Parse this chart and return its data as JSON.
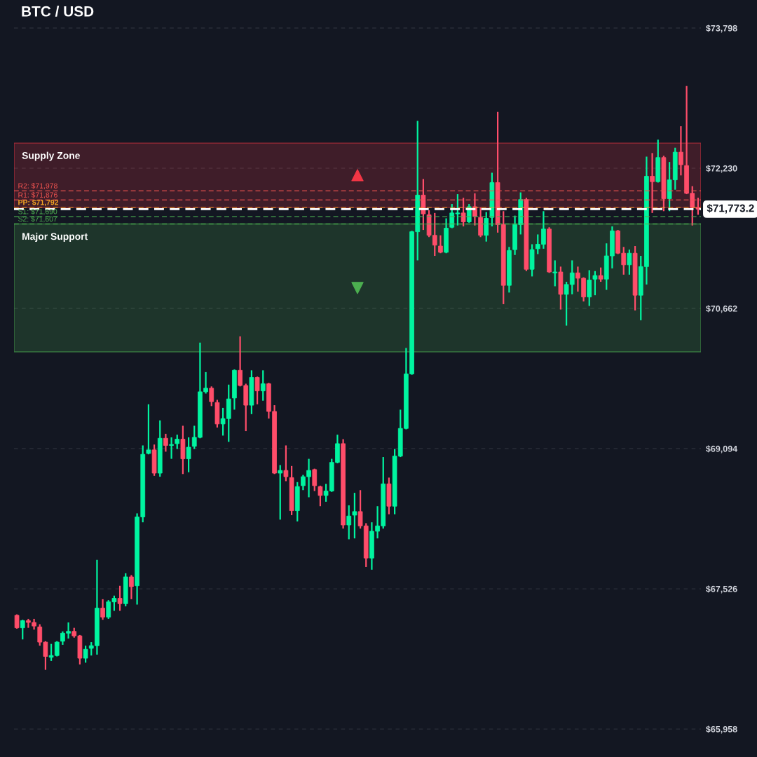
{
  "chart_data": {
    "type": "candlestick",
    "title": "BTC / USD",
    "categories": [
      null,
      null,
      null,
      null,
      null,
      null,
      null,
      null,
      null,
      null,
      null,
      null,
      null,
      null,
      null,
      null,
      null,
      null,
      null,
      null,
      null,
      null,
      null,
      null,
      null,
      null,
      null,
      null,
      null,
      null,
      null,
      null,
      null,
      null,
      null,
      null,
      null,
      null,
      null,
      null,
      null,
      null,
      null,
      null,
      null,
      null,
      null,
      null,
      null,
      null,
      null,
      null,
      null,
      null,
      null,
      null,
      null,
      null,
      null,
      null,
      null,
      null,
      null,
      null,
      null,
      null,
      null,
      null,
      null,
      null,
      null,
      null,
      null,
      null,
      null,
      null,
      null,
      null,
      null,
      null,
      null,
      null,
      null,
      null,
      null,
      null,
      null,
      null,
      null,
      null,
      null,
      null,
      null,
      null,
      null,
      null,
      null,
      null,
      null,
      null,
      null,
      null,
      null,
      null,
      null,
      null,
      null,
      null,
      null,
      null,
      null,
      null,
      null,
      null,
      null,
      null,
      null,
      null,
      null,
      null
    ],
    "ohlc": [
      [
        67230,
        67240,
        67080,
        67090
      ],
      [
        67090,
        67180,
        66960,
        67170
      ],
      [
        67170,
        67190,
        67090,
        67150
      ],
      [
        67150,
        67190,
        67070,
        67110
      ],
      [
        67100,
        67130,
        66890,
        66930
      ],
      [
        66930,
        66940,
        66620,
        66770
      ],
      [
        66760,
        66910,
        66720,
        66780
      ],
      [
        66780,
        66940,
        66770,
        66930
      ],
      [
        66940,
        67050,
        66900,
        67030
      ],
      [
        67030,
        67150,
        66970,
        67050
      ],
      [
        67050,
        67090,
        66980,
        67000
      ],
      [
        67000,
        67010,
        66680,
        66750
      ],
      [
        66750,
        66890,
        66700,
        66850
      ],
      [
        66860,
        66930,
        66780,
        66890
      ],
      [
        66890,
        67850,
        66790,
        67310
      ],
      [
        67310,
        67410,
        67180,
        67210
      ],
      [
        67210,
        67400,
        67190,
        67380
      ],
      [
        67380,
        67450,
        67280,
        67420
      ],
      [
        67420,
        67560,
        67280,
        67360
      ],
      [
        67360,
        67700,
        67330,
        67660
      ],
      [
        67660,
        67680,
        67410,
        67550
      ],
      [
        67560,
        68370,
        67350,
        68330
      ],
      [
        68330,
        69130,
        68270,
        69030
      ],
      [
        69040,
        69590,
        69030,
        69080
      ],
      [
        69080,
        69140,
        68790,
        68820
      ],
      [
        68820,
        69410,
        68780,
        69210
      ],
      [
        69210,
        69260,
        69060,
        69130
      ],
      [
        69130,
        69220,
        68980,
        69140
      ],
      [
        69150,
        69250,
        69090,
        69200
      ],
      [
        69200,
        69350,
        68810,
        68980
      ],
      [
        68980,
        69220,
        68830,
        69110
      ],
      [
        69120,
        69350,
        69090,
        69220
      ],
      [
        69220,
        70280,
        69210,
        69730
      ],
      [
        69730,
        69950,
        69710,
        69770
      ],
      [
        69770,
        69790,
        69570,
        69620
      ],
      [
        69610,
        69640,
        69330,
        69370
      ],
      [
        69370,
        69550,
        69240,
        69430
      ],
      [
        69430,
        69810,
        69170,
        69650
      ],
      [
        69660,
        69980,
        69530,
        69970
      ],
      [
        69970,
        70350,
        69790,
        69800
      ],
      [
        69800,
        69820,
        69290,
        69580
      ],
      [
        69580,
        69970,
        69480,
        69890
      ],
      [
        69890,
        69900,
        69590,
        69740
      ],
      [
        69740,
        69970,
        69630,
        69820
      ],
      [
        69820,
        69830,
        69430,
        69510
      ],
      [
        69510,
        69580,
        68810,
        68820
      ],
      [
        68820,
        68910,
        68300,
        68850
      ],
      [
        68850,
        69130,
        68730,
        68780
      ],
      [
        68770,
        68900,
        68350,
        68400
      ],
      [
        68400,
        68720,
        68280,
        68670
      ],
      [
        68680,
        68800,
        68630,
        68780
      ],
      [
        68780,
        68980,
        68550,
        68850
      ],
      [
        68860,
        68870,
        68620,
        68680
      ],
      [
        68670,
        68680,
        68450,
        68570
      ],
      [
        68570,
        68700,
        68500,
        68620
      ],
      [
        68620,
        68980,
        68610,
        68940
      ],
      [
        68940,
        69250,
        68930,
        69150
      ],
      [
        69150,
        69200,
        68200,
        68240
      ],
      [
        68240,
        68460,
        68080,
        68340
      ],
      [
        68350,
        68600,
        68090,
        68390
      ],
      [
        68390,
        68630,
        68200,
        68230
      ],
      [
        68230,
        68260,
        67770,
        67870
      ],
      [
        67870,
        68270,
        67740,
        68170
      ],
      [
        68170,
        68450,
        68090,
        68230
      ],
      [
        68230,
        69000,
        68200,
        68700
      ],
      [
        68700,
        68770,
        68360,
        68450
      ],
      [
        68450,
        69090,
        68360,
        69010
      ],
      [
        69010,
        69530,
        69000,
        69320
      ],
      [
        69320,
        70220,
        69310,
        69930
      ],
      [
        69930,
        71530,
        69920,
        71520
      ],
      [
        71520,
        72760,
        71200,
        71930
      ],
      [
        71930,
        72110,
        71540,
        71720
      ],
      [
        71710,
        71760,
        71460,
        71480
      ],
      [
        71480,
        71730,
        71250,
        71370
      ],
      [
        71360,
        71480,
        71280,
        71290
      ],
      [
        71290,
        71670,
        71280,
        71560
      ],
      [
        71570,
        71830,
        71560,
        71730
      ],
      [
        71720,
        71940,
        71590,
        71730
      ],
      [
        71730,
        71900,
        71580,
        71630
      ],
      [
        71630,
        71830,
        71620,
        71800
      ],
      [
        71800,
        71950,
        71590,
        71690
      ],
      [
        71680,
        71790,
        71460,
        71480
      ],
      [
        71480,
        71740,
        71410,
        71670
      ],
      [
        71680,
        72180,
        71580,
        72070
      ],
      [
        72070,
        72860,
        71510,
        71600
      ],
      [
        71600,
        71750,
        70710,
        70920
      ],
      [
        70920,
        71350,
        70840,
        71310
      ],
      [
        71320,
        71700,
        71260,
        71600
      ],
      [
        71600,
        71960,
        71490,
        71880
      ],
      [
        71880,
        71900,
        71080,
        71100
      ],
      [
        71100,
        71380,
        71020,
        71320
      ],
      [
        71330,
        71490,
        71270,
        71380
      ],
      [
        71380,
        71750,
        71330,
        71550
      ],
      [
        71550,
        71570,
        71060,
        71070
      ],
      [
        71060,
        71200,
        70910,
        71070
      ],
      [
        71070,
        71130,
        70650,
        70820
      ],
      [
        70820,
        70960,
        70470,
        70930
      ],
      [
        70930,
        71200,
        70820,
        71060
      ],
      [
        71060,
        71130,
        70850,
        71000
      ],
      [
        71000,
        71010,
        70740,
        70790
      ],
      [
        70790,
        71090,
        70690,
        70980
      ],
      [
        70990,
        71080,
        70810,
        71030
      ],
      [
        71030,
        71120,
        70960,
        70990
      ],
      [
        70990,
        71390,
        70870,
        71250
      ],
      [
        71250,
        71580,
        71110,
        71530
      ],
      [
        71530,
        71540,
        71270,
        71280
      ],
      [
        71280,
        71350,
        71040,
        71150
      ],
      [
        71150,
        71320,
        71040,
        71280
      ],
      [
        71280,
        71360,
        70640,
        70810
      ],
      [
        70810,
        71250,
        70530,
        71130
      ],
      [
        71130,
        72360,
        70930,
        72140
      ],
      [
        72140,
        72400,
        71730,
        72080
      ],
      [
        72080,
        72550,
        72070,
        72350
      ],
      [
        72350,
        72370,
        71750,
        71890
      ],
      [
        71890,
        72300,
        71750,
        72100
      ],
      [
        72100,
        72460,
        71990,
        72410
      ],
      [
        72410,
        72700,
        72150,
        72270
      ],
      [
        72260,
        73150,
        71940,
        71950
      ],
      [
        71950,
        72030,
        71590,
        71790
      ],
      [
        71790,
        71900,
        71710,
        71773.2
      ]
    ],
    "colors": [
      "#ff4d6a",
      "#00f5a0",
      "#ff4d6a",
      "#ff4d6a",
      "#ff4d6a",
      "#ff4d6a",
      "#00f5a0",
      "#00f5a0",
      "#00f5a0",
      "#00f5a0",
      "#ff4d6a",
      "#ff4d6a",
      "#00f5a0",
      "#00f5a0",
      "#00f5a0",
      "#ff4d6a",
      "#00f5a0",
      "#00f5a0",
      "#ff4d6a",
      "#00f5a0",
      "#ff4d6a",
      "#00f5a0",
      "#00f5a0",
      "#00f5a0",
      "#ff4d6a",
      "#00f5a0",
      "#ff4d6a",
      "#00f5a0",
      "#00f5a0",
      "#ff4d6a",
      "#00f5a0",
      "#00f5a0",
      "#00f5a0",
      "#00f5a0",
      "#ff4d6a",
      "#ff4d6a",
      "#00f5a0",
      "#00f5a0",
      "#00f5a0",
      "#ff4d6a",
      "#ff4d6a",
      "#00f5a0",
      "#ff4d6a",
      "#00f5a0",
      "#ff4d6a",
      "#ff4d6a",
      "#00f5a0",
      "#ff4d6a",
      "#ff4d6a",
      "#00f5a0",
      "#00f5a0",
      "#00f5a0",
      "#ff4d6a",
      "#ff4d6a",
      "#00f5a0",
      "#00f5a0",
      "#00f5a0",
      "#ff4d6a",
      "#00f5a0",
      "#00f5a0",
      "#ff4d6a",
      "#ff4d6a",
      "#00f5a0",
      "#00f5a0",
      "#00f5a0",
      "#ff4d6a",
      "#00f5a0",
      "#00f5a0",
      "#00f5a0",
      "#00f5a0",
      "#00f5a0",
      "#ff4d6a",
      "#ff4d6a",
      "#ff4d6a",
      "#ff4d6a",
      "#00f5a0",
      "#00f5a0",
      "#00f5a0",
      "#ff4d6a",
      "#00f5a0",
      "#ff4d6a",
      "#ff4d6a",
      "#00f5a0",
      "#00f5a0",
      "#ff4d6a",
      "#ff4d6a",
      "#00f5a0",
      "#00f5a0",
      "#00f5a0",
      "#ff4d6a",
      "#00f5a0",
      "#00f5a0",
      "#00f5a0",
      "#ff4d6a",
      "#00f5a0",
      "#ff4d6a",
      "#00f5a0",
      "#00f5a0",
      "#ff4d6a",
      "#ff4d6a",
      "#00f5a0",
      "#00f5a0",
      "#ff4d6a",
      "#00f5a0",
      "#00f5a0",
      "#ff4d6a",
      "#ff4d6a",
      "#00f5a0",
      "#ff4d6a",
      "#00f5a0",
      "#00f5a0",
      "#ff4d6a",
      "#00f5a0",
      "#ff4d6a",
      "#00f5a0",
      "#00f5a0",
      "#ff4d6a",
      "#ff4d6a",
      "#ff4d6a",
      "#ff4d6a"
    ],
    "ylim": [
      65645,
      74112
    ],
    "yticks": [
      {
        "value": 65958,
        "label": "$65,958"
      },
      {
        "value": 67526,
        "label": "$67,526"
      },
      {
        "value": 69094,
        "label": "$69,094"
      },
      {
        "value": 70662,
        "label": "$70,662"
      },
      {
        "value": 72230,
        "label": "$72,230"
      },
      {
        "value": 73798,
        "label": "$73,798"
      }
    ],
    "tick_labels": "y",
    "grid": "y",
    "bands": [
      {
        "axis": "y",
        "from": 71792,
        "to": 72512,
        "label": "Supply Zone",
        "color": "#f23645"
      },
      {
        "axis": "y",
        "from": 70176,
        "to": 71607,
        "label": "Major Support",
        "color": "#4caf50"
      }
    ],
    "ref_lines": [
      {
        "axis": "y",
        "value": 71978,
        "label": "R2: $71,978",
        "color": "#ef5350",
        "line_style": "dashed"
      },
      {
        "axis": "y",
        "value": 71876,
        "label": "R1: $71,876",
        "color": "#ef5350",
        "line_style": "dashed"
      },
      {
        "axis": "y",
        "value": 71792,
        "label": "PP: $71,792",
        "color": "#f5a623",
        "line_style": "dashed"
      },
      {
        "axis": "y",
        "value": 71690,
        "label": "S1: $71,690",
        "color": "#4caf50",
        "line_style": "dashed"
      },
      {
        "axis": "y",
        "value": 71607,
        "label": "S2: $71,607",
        "color": "#4caf50",
        "line_style": "dashed"
      },
      {
        "axis": "y",
        "value": 71773.2,
        "label": "$71,773.2",
        "color": "#ffffff",
        "line_style": "dashed"
      }
    ]
  }
}
